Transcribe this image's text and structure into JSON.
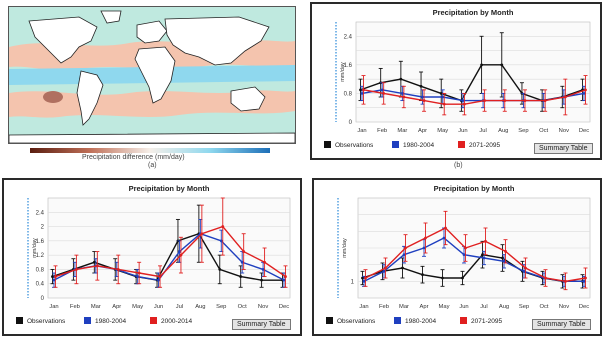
{
  "captions": {
    "a": "(a)",
    "b": "(b)"
  },
  "map": {
    "colorbar_caption": "Precipitation difference (mm/day)",
    "colors": {
      "ocean": "#bfe9df",
      "land": "#ffffff",
      "wet": "#8fd8ee",
      "dry": "#f4c4ae",
      "strong_dry": "#b07060",
      "coast": "#222222"
    }
  },
  "legend": {
    "observations": "Observations",
    "summary_button": "Summary Table",
    "colors": {
      "observations": "#111111",
      "baseline": "#1f3fbf",
      "future": "#e02020"
    }
  },
  "chart_data": [
    {
      "id": "top-right",
      "type": "line",
      "title": "Precipitation by Month",
      "ylabel": "mm/day",
      "categories": [
        "Jan",
        "Feb",
        "Mar",
        "Apr",
        "May",
        "Jun",
        "Jul",
        "Aug",
        "Sep",
        "Oct",
        "Nov",
        "Dec"
      ],
      "ylim": [
        0,
        2.8
      ],
      "yticks": [
        0,
        0.4,
        0.8,
        1.2,
        1.6,
        2,
        2.4
      ],
      "ytick_labels": [
        "0",
        "",
        "0.8",
        "",
        "1.6",
        "",
        "2.4"
      ],
      "series": [
        {
          "name": "Observations",
          "color": "#111111",
          "values": [
            0.9,
            1.1,
            1.2,
            1.0,
            0.8,
            0.6,
            1.6,
            1.6,
            0.8,
            0.6,
            0.7,
            0.9
          ],
          "err": [
            0.3,
            0.4,
            0.5,
            0.4,
            0.4,
            0.3,
            0.8,
            0.9,
            0.3,
            0.3,
            0.3,
            0.3
          ]
        },
        {
          "name": "1980-2004",
          "color": "#1f3fbf",
          "values": [
            0.8,
            0.9,
            0.8,
            0.7,
            0.7,
            0.6,
            0.6,
            0.6,
            0.6,
            0.6,
            0.7,
            0.8
          ],
          "err": [
            0.2,
            0.2,
            0.2,
            0.2,
            0.2,
            0.2,
            0.2,
            0.2,
            0.2,
            0.2,
            0.2,
            0.2
          ]
        },
        {
          "name": "2071-2095",
          "color": "#e02020",
          "values": [
            0.9,
            0.8,
            0.7,
            0.6,
            0.5,
            0.5,
            0.6,
            0.6,
            0.6,
            0.6,
            0.7,
            0.9
          ],
          "err": [
            0.4,
            0.3,
            0.3,
            0.3,
            0.3,
            0.3,
            0.3,
            0.3,
            0.3,
            0.3,
            0.5,
            0.4
          ]
        }
      ],
      "legend_entries": [
        "Observations",
        "1980-2004",
        "2071-2095"
      ]
    },
    {
      "id": "bottom-left",
      "type": "line",
      "title": "Precipitation by Month",
      "ylabel": "mm/day",
      "categories": [
        "Jan",
        "Feb",
        "Mar",
        "Apr",
        "May",
        "Jun",
        "Jul",
        "Aug",
        "Sep",
        "Oct",
        "Nov",
        "Dec"
      ],
      "ylim": [
        0,
        2.8
      ],
      "yticks": [
        0,
        0.4,
        0.8,
        1.2,
        1.6,
        2,
        2.4
      ],
      "ytick_labels": [
        "0",
        "0.4",
        "0.8",
        "1.2",
        "1.6",
        "2",
        "2.4"
      ],
      "series": [
        {
          "name": "Observations",
          "color": "#111111",
          "values": [
            0.6,
            0.8,
            1.0,
            0.8,
            0.6,
            0.5,
            1.6,
            1.8,
            0.8,
            0.6,
            0.5,
            0.5
          ],
          "err": [
            0.2,
            0.3,
            0.3,
            0.3,
            0.2,
            0.2,
            0.6,
            0.8,
            0.4,
            0.3,
            0.2,
            0.2
          ]
        },
        {
          "name": "1980-2004",
          "color": "#1f3fbf",
          "values": [
            0.5,
            0.8,
            0.9,
            0.8,
            0.6,
            0.5,
            1.3,
            1.8,
            1.6,
            1.0,
            0.8,
            0.5
          ],
          "err": [
            0.2,
            0.2,
            0.2,
            0.2,
            0.2,
            0.2,
            0.3,
            0.4,
            0.3,
            0.3,
            0.2,
            0.2
          ]
        },
        {
          "name": "2000-2014",
          "color": "#e02020",
          "values": [
            0.6,
            0.8,
            0.9,
            0.8,
            0.7,
            0.6,
            1.2,
            1.8,
            2.0,
            1.3,
            1.0,
            0.6
          ],
          "err": [
            0.3,
            0.4,
            0.4,
            0.4,
            0.3,
            0.3,
            0.5,
            0.8,
            0.8,
            0.5,
            0.4,
            0.3
          ]
        }
      ],
      "legend_entries": [
        "Observations",
        "1980-2004",
        "2000-2014"
      ]
    },
    {
      "id": "bottom-right",
      "type": "line",
      "title": "Precipitation by Month",
      "ylabel": "mm/day",
      "categories": [
        "Jan",
        "Feb",
        "Mar",
        "Apr",
        "May",
        "Jun",
        "Jul",
        "Aug",
        "Sep",
        "Oct",
        "Nov",
        "Dec"
      ],
      "ylim": [
        0,
        6
      ],
      "yticks": [
        0,
        1,
        2,
        3,
        4,
        5
      ],
      "ytick_labels": [
        "",
        "1",
        "",
        "",
        "",
        ""
      ],
      "series": [
        {
          "name": "Observations",
          "color": "#111111",
          "values": [
            1.2,
            1.6,
            1.8,
            1.4,
            1.2,
            1.2,
            2.6,
            2.4,
            1.6,
            1.2,
            1.0,
            1.0
          ],
          "err": [
            0.4,
            0.5,
            0.6,
            0.5,
            0.5,
            0.4,
            0.8,
            0.8,
            0.6,
            0.4,
            0.4,
            0.4
          ]
        },
        {
          "name": "1980-2004",
          "color": "#1f3fbf",
          "values": [
            1.0,
            1.6,
            2.6,
            3.0,
            3.6,
            2.6,
            2.4,
            2.2,
            1.6,
            1.2,
            1.0,
            1.0
          ],
          "err": [
            0.3,
            0.4,
            0.5,
            0.5,
            0.6,
            0.5,
            0.4,
            0.4,
            0.4,
            0.3,
            0.3,
            0.3
          ]
        },
        {
          "name": "2071-2095",
          "color": "#e02020",
          "values": [
            1.2,
            1.8,
            3.0,
            3.6,
            4.2,
            3.0,
            3.4,
            2.8,
            1.8,
            1.2,
            1.0,
            1.2
          ],
          "err": [
            0.5,
            0.6,
            0.8,
            0.9,
            1.0,
            0.8,
            0.8,
            0.7,
            0.6,
            0.5,
            0.5,
            0.6
          ]
        }
      ],
      "legend_entries": [
        "Observations",
        "1980-2004",
        "2071-2095"
      ]
    }
  ]
}
